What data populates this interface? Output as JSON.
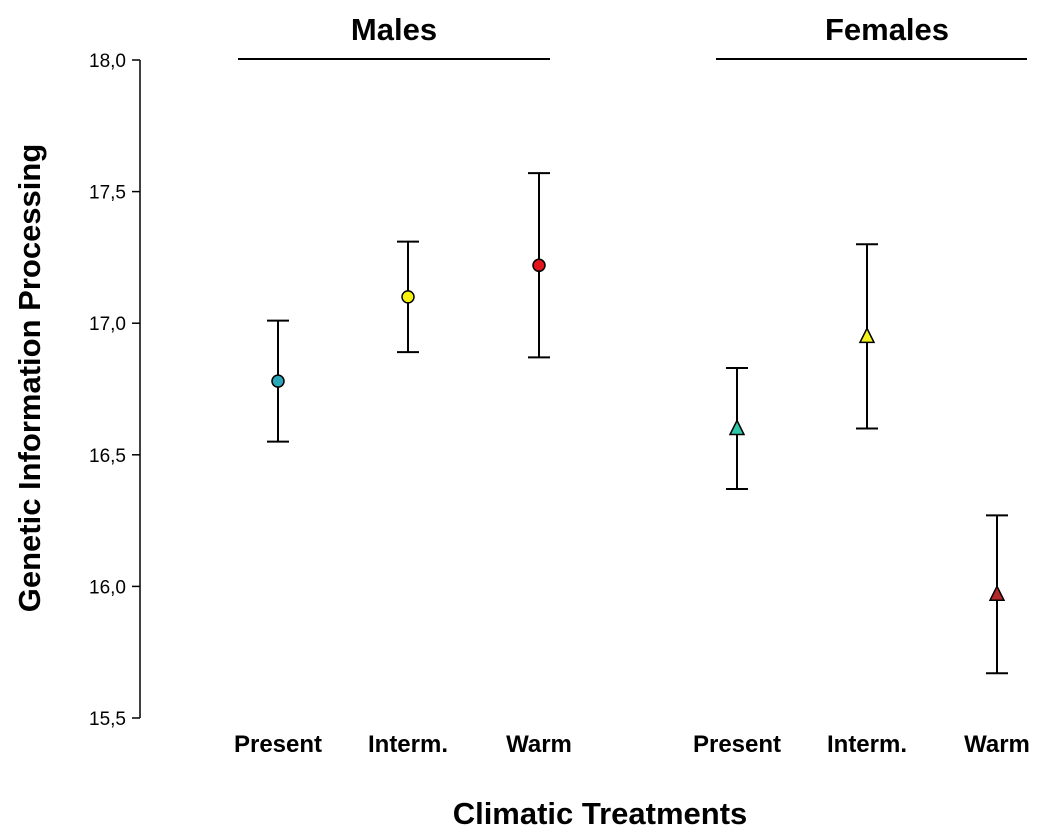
{
  "chart_data": {
    "type": "scatter",
    "ylabel": "Genetic Information Processing",
    "xlabel": "Climatic Treatments",
    "ylim": [
      15.5,
      18.0
    ],
    "yticks": [
      15.5,
      16.0,
      16.5,
      17.0,
      17.5,
      18.0
    ],
    "ytick_labels": [
      "15,5",
      "16,0",
      "16,5",
      "17,0",
      "17,5",
      "18,0"
    ],
    "grid": false,
    "groups": [
      {
        "name": "Males",
        "marker": "circle",
        "points": [
          {
            "category": "Present",
            "mean": 16.78,
            "lower": 16.55,
            "upper": 17.01,
            "color": "#2aa7b8"
          },
          {
            "category": "Interm.",
            "mean": 17.1,
            "lower": 16.89,
            "upper": 17.31,
            "color": "#f6f20e"
          },
          {
            "category": "Warm",
            "mean": 17.22,
            "lower": 16.87,
            "upper": 17.57,
            "color": "#e3141b"
          }
        ]
      },
      {
        "name": "Females",
        "marker": "triangle",
        "points": [
          {
            "category": "Present",
            "mean": 16.6,
            "lower": 16.37,
            "upper": 16.83,
            "color": "#2ec8a8"
          },
          {
            "category": "Interm.",
            "mean": 16.95,
            "lower": 16.6,
            "upper": 17.3,
            "color": "#f4f21c"
          },
          {
            "category": "Warm",
            "mean": 15.97,
            "lower": 15.67,
            "upper": 16.27,
            "color": "#b3282c"
          }
        ]
      }
    ]
  }
}
